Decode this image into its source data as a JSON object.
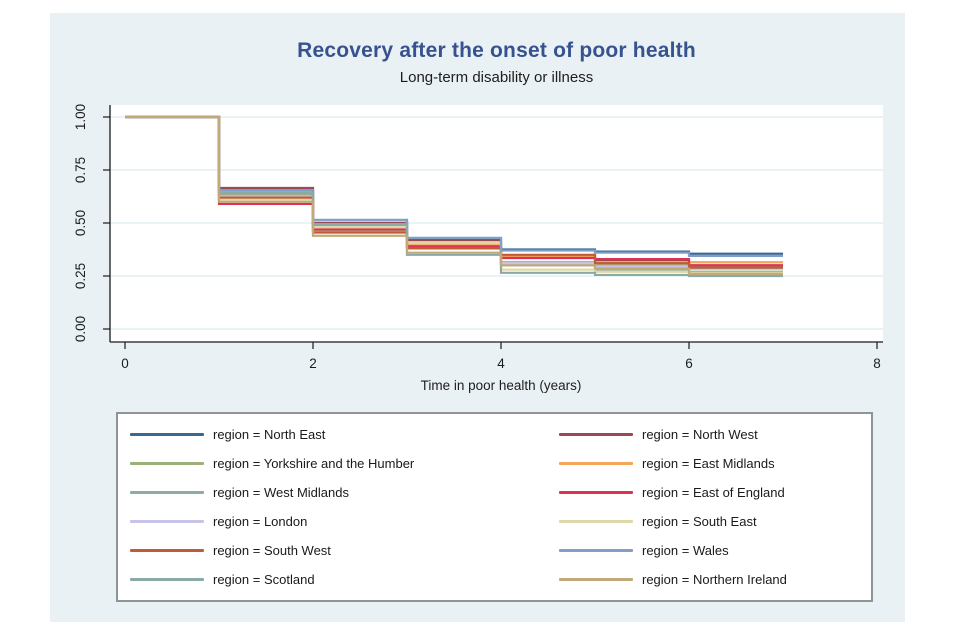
{
  "chart": {
    "title": "Recovery after the onset of poor health",
    "subtitle": "Long-term disability or illness",
    "xlabel": "Time in poor health (years)",
    "title_color": "#37538f",
    "figure_bg": "#eaf1f4",
    "plot_bg": "#ffffff",
    "grid_color": "#e2edf0",
    "axis_color": "#1a1a1a"
  },
  "chart_data": {
    "type": "line",
    "step": true,
    "title": "Recovery after the onset of poor health",
    "subtitle": "Long-term disability or illness",
    "xlabel": "Time in poor health (years)",
    "ylabel": "",
    "xlim": [
      0,
      8
    ],
    "ylim": [
      0.0,
      1.0
    ],
    "x_ticks": [
      0,
      2,
      4,
      6,
      8
    ],
    "y_ticks": [
      "0.00",
      "0.25",
      "0.50",
      "0.75",
      "1.00"
    ],
    "y_tick_values": [
      0.0,
      0.25,
      0.5,
      0.75,
      1.0
    ],
    "grid": true,
    "legend_position": "bottom",
    "x": [
      0,
      1,
      2,
      3,
      4,
      5,
      6
    ],
    "x_end": 7,
    "series": [
      {
        "name": "region = North East",
        "region": "North East",
        "color": "#3a6894",
        "values": [
          1.0,
          0.66,
          0.505,
          0.425,
          0.375,
          0.365,
          0.355
        ]
      },
      {
        "name": "region = North West",
        "region": "North West",
        "color": "#9b4a51",
        "values": [
          1.0,
          0.665,
          0.5,
          0.42,
          0.34,
          0.325,
          0.3
        ]
      },
      {
        "name": "region = Yorkshire and the Humber",
        "region": "Yorkshire and the Humber",
        "color": "#9db07a",
        "values": [
          1.0,
          0.635,
          0.465,
          0.4,
          0.315,
          0.3,
          0.285
        ]
      },
      {
        "name": "region = East Midlands",
        "region": "East Midlands",
        "color": "#f5a45c",
        "values": [
          1.0,
          0.615,
          0.475,
          0.395,
          0.345,
          0.315,
          0.315
        ]
      },
      {
        "name": "region = West Midlands",
        "region": "West Midlands",
        "color": "#8fad9f",
        "values": [
          1.0,
          0.645,
          0.49,
          0.385,
          0.305,
          0.28,
          0.27
        ]
      },
      {
        "name": "region = East of England",
        "region": "East of England",
        "color": "#dd3254",
        "values": [
          1.0,
          0.59,
          0.47,
          0.39,
          0.335,
          0.33,
          0.3
        ]
      },
      {
        "name": "region = London",
        "region": "London",
        "color": "#c7c4ea",
        "values": [
          1.0,
          0.625,
          0.51,
          0.41,
          0.31,
          0.295,
          0.29
        ]
      },
      {
        "name": "region = South East",
        "region": "South East",
        "color": "#ded8a8",
        "values": [
          1.0,
          0.61,
          0.48,
          0.405,
          0.28,
          0.27,
          0.265
        ]
      },
      {
        "name": "region = South West",
        "region": "South West",
        "color": "#c05c34",
        "values": [
          1.0,
          0.62,
          0.455,
          0.38,
          0.35,
          0.31,
          0.29
        ]
      },
      {
        "name": "region = Wales",
        "region": "Wales",
        "color": "#809fc7",
        "values": [
          1.0,
          0.655,
          0.515,
          0.43,
          0.37,
          0.36,
          0.345
        ]
      },
      {
        "name": "region = Scotland",
        "region": "Scotland",
        "color": "#8ba9a6",
        "values": [
          1.0,
          0.64,
          0.495,
          0.35,
          0.265,
          0.255,
          0.25
        ]
      },
      {
        "name": "region = Northern Ireland",
        "region": "Northern Ireland",
        "color": "#c1aa78",
        "values": [
          1.0,
          0.6,
          0.44,
          0.36,
          0.3,
          0.285,
          0.26
        ]
      }
    ]
  }
}
